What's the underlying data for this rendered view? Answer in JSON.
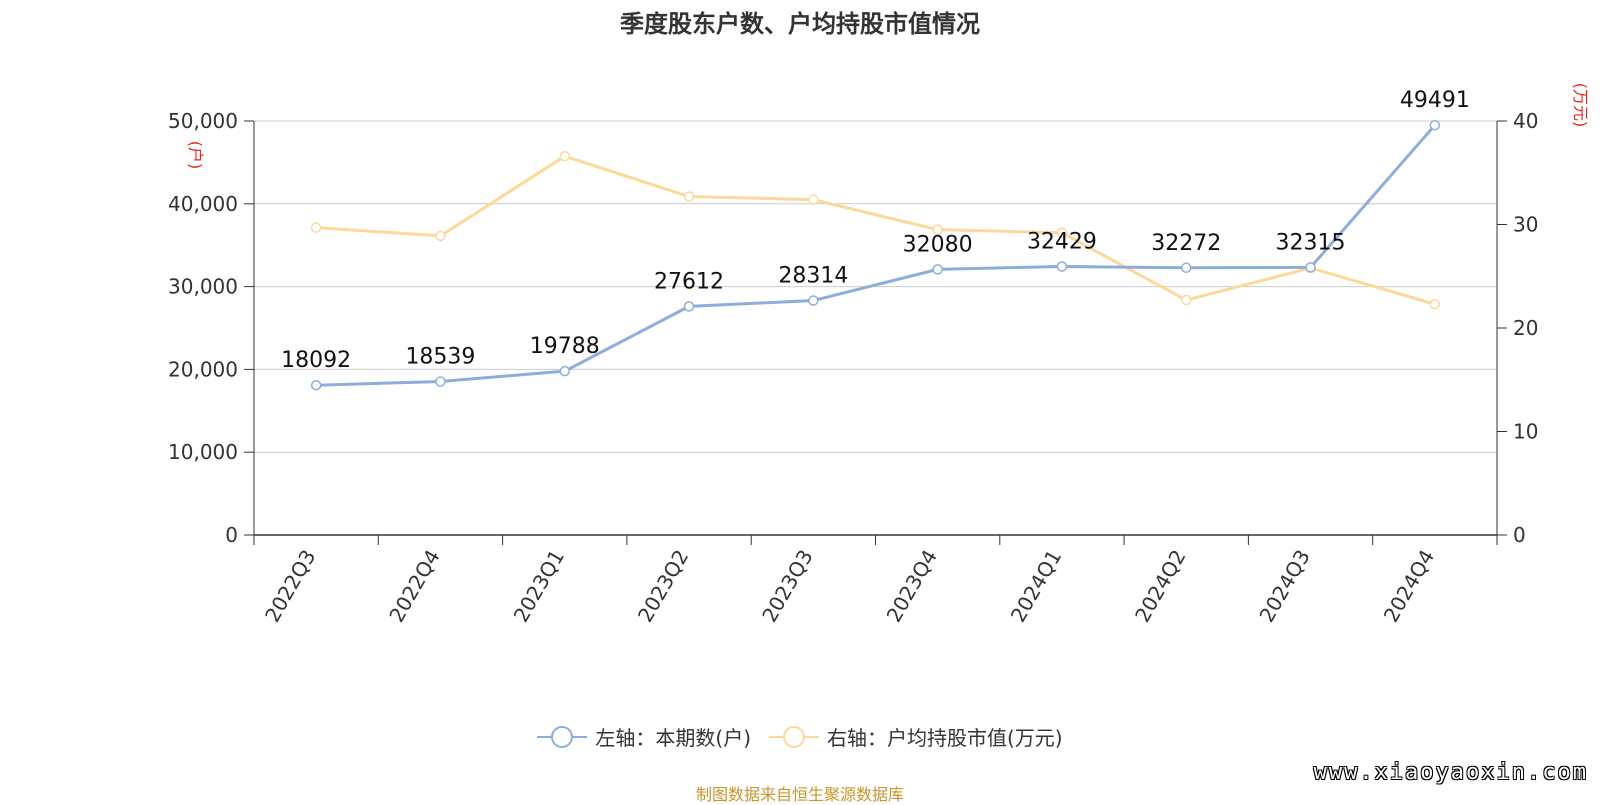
{
  "title": "季度股东户数、户均持股市值情况",
  "colors": {
    "left_series": "#8eadd9",
    "right_series": "#fcd89a",
    "axis_unit": "#e8261c",
    "source_text": "#c8952a"
  },
  "legend": [
    {
      "label": "左轴：本期数(户)",
      "color": "#8eadd9"
    },
    {
      "label": "右轴：户均持股市值(万元)",
      "color": "#fcd89a"
    }
  ],
  "source": "制图数据来自恒生聚源数据库",
  "watermark": "www.xiaoyaoxin.com",
  "chart_data": {
    "type": "line",
    "title": "季度股东户数、户均持股市值情况",
    "categories": [
      "2022Q3",
      "2022Q4",
      "2023Q1",
      "2023Q2",
      "2023Q3",
      "2023Q4",
      "2024Q1",
      "2024Q2",
      "2024Q3",
      "2024Q4"
    ],
    "left_axis": {
      "unit": "(户)",
      "ylim": [
        0,
        50000
      ],
      "ticks": [
        "0",
        "10,000",
        "20,000",
        "30,000",
        "40,000",
        "50,000"
      ]
    },
    "right_axis": {
      "unit": "(万元)",
      "ylim": [
        0,
        40
      ],
      "ticks": [
        "0",
        "10",
        "20",
        "30",
        "40"
      ]
    },
    "series": [
      {
        "name": "左轴：本期数(户)",
        "axis": "left",
        "color": "#8eadd9",
        "values": [
          18092,
          18539,
          19788,
          27612,
          28314,
          32080,
          32429,
          32272,
          32315,
          49491
        ],
        "labels": [
          "18092",
          "18539",
          "19788",
          "27612",
          "28314",
          "32080",
          "32429",
          "32272",
          "32315",
          "49491"
        ]
      },
      {
        "name": "右轴：户均持股市值(万元)",
        "axis": "right",
        "color": "#fcd89a",
        "values": [
          29.7,
          28.9,
          36.6,
          32.7,
          32.4,
          29.5,
          29.2,
          22.7,
          25.8,
          22.3
        ]
      }
    ],
    "grid": true,
    "legend_position": "bottom"
  }
}
